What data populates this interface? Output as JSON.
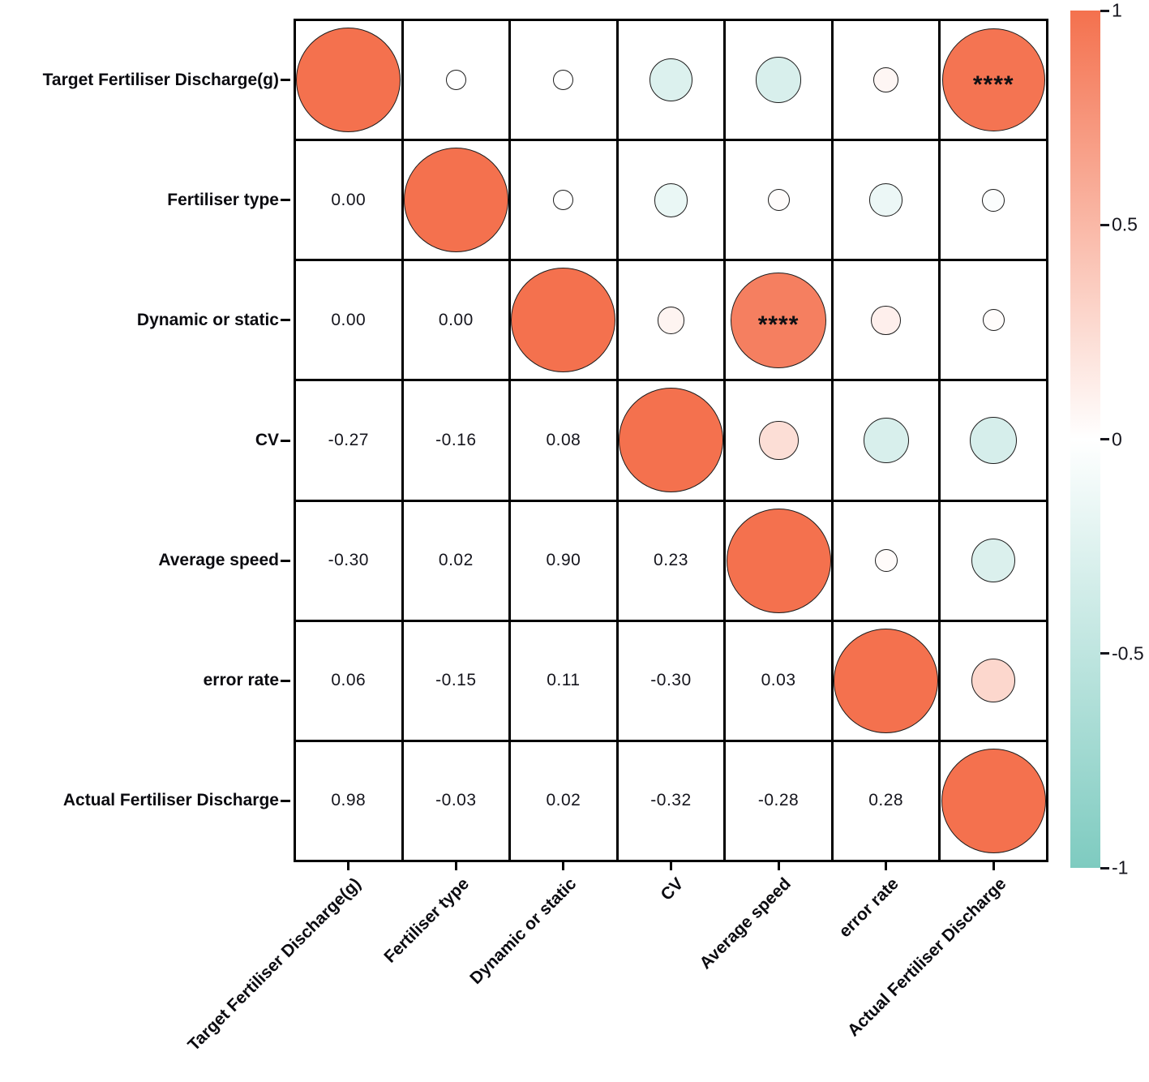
{
  "chart_data": {
    "type": "heatmap",
    "subtype": "correlation-matrix-corrplot",
    "title": "",
    "variables": [
      "Target Fertiliser Discharge(g)",
      "Fertiliser type",
      "Dynamic or static",
      "CV",
      "Average speed",
      "error rate",
      "Actual Fertiliser Discharge"
    ],
    "matrix": [
      [
        1.0,
        0.0,
        0.0,
        -0.27,
        -0.3,
        0.06,
        0.98
      ],
      [
        0.0,
        1.0,
        0.0,
        -0.16,
        0.02,
        -0.15,
        -0.03
      ],
      [
        0.0,
        0.0,
        1.0,
        0.08,
        0.9,
        0.11,
        0.02
      ],
      [
        -0.27,
        -0.16,
        0.08,
        1.0,
        0.23,
        -0.3,
        -0.32
      ],
      [
        -0.3,
        0.02,
        0.9,
        0.23,
        1.0,
        0.03,
        -0.28
      ],
      [
        0.06,
        -0.15,
        0.11,
        -0.3,
        0.03,
        1.0,
        0.28
      ],
      [
        0.98,
        -0.03,
        0.02,
        -0.32,
        -0.28,
        0.28,
        1.0
      ]
    ],
    "significance_stars": {
      "0-6": "****",
      "2-4": "****"
    },
    "display": {
      "lower_triangle": "numeric values (2 decimals)",
      "upper_triangle": "circles sized and colored by correlation",
      "diagonal": "full-size circles (r = 1)"
    },
    "colorbar": {
      "tick_labels": [
        "1",
        "0.5",
        "0",
        "-0.5",
        "-1"
      ],
      "top_value": 1,
      "bottom_value": -1,
      "legend_position": "right"
    },
    "axis": {
      "grid_on": true,
      "value_range": [
        -1,
        1
      ]
    },
    "colors": {
      "positive_end": "#f4714e",
      "negative_end": "#7ecbc0",
      "zero": "#ffffff",
      "circle_outline": "#1c1c1c",
      "grid_line": "#000000",
      "value_text": "#15151d",
      "axis_label_text": "#0b0b10",
      "colorbar_label_text": "#15151d"
    }
  }
}
